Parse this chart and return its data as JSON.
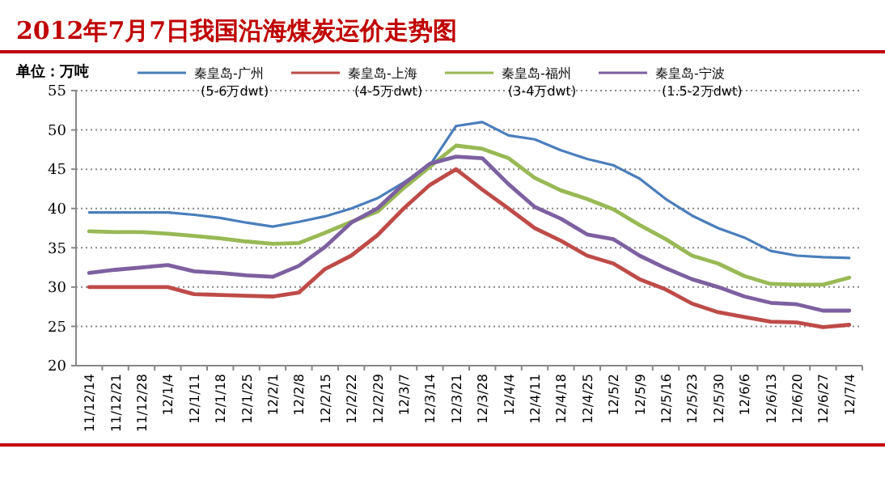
{
  "chart_data": {
    "type": "line",
    "title": "2012年7月7日我国沿海煤炭运价走势图",
    "ylabel": "单位：万吨",
    "legend": "top",
    "grid": "y",
    "marker": "none",
    "line_style": "solid",
    "categories": [
      "11/12/14",
      "11/12/21",
      "11/12/28",
      "12/1/4",
      "12/1/11",
      "12/1/18",
      "12/1/25",
      "12/2/1",
      "12/2/8",
      "12/2/15",
      "12/2/22",
      "12/2/29",
      "12/3/7",
      "12/3/14",
      "12/3/21",
      "12/3/28",
      "12/4/4",
      "12/4/11",
      "12/4/18",
      "12/4/25",
      "12/5/2",
      "12/5/9",
      "12/5/16",
      "12/5/23",
      "12/5/30",
      "12/6/6",
      "12/6/13",
      "12/6/20",
      "12/6/27",
      "12/7/4"
    ],
    "ylim": [
      20,
      55
    ],
    "yticks": [
      20,
      25,
      30,
      35,
      40,
      45,
      50,
      55
    ],
    "series": [
      {
        "name": "秦皇岛-广州\n(5-6万dwt)",
        "color": "#4a7ebb",
        "values": [
          39.5,
          39.5,
          39.5,
          39.5,
          39.2,
          38.8,
          38.2,
          37.7,
          38.3,
          39.0,
          40.0,
          41.3,
          43.3,
          45.5,
          50.5,
          51,
          49.3,
          48.8,
          47.4,
          46.3,
          45.5,
          43.8,
          41.2,
          39.1,
          37.5,
          36.3,
          34.6,
          34,
          33.8,
          33.7
        ]
      },
      {
        "name": "秦皇岛-上海\n(4-5万dwt)",
        "color": "#be4b48",
        "values": [
          30,
          30,
          30,
          30,
          29.1,
          29,
          28.9,
          28.8,
          29.3,
          32.3,
          34,
          36.6,
          40,
          43,
          45,
          42.4,
          40,
          37.5,
          35.9,
          34,
          33,
          31,
          29.7,
          27.9,
          26.8,
          26.2,
          25.6,
          25.5,
          24.9,
          25.2
        ]
      },
      {
        "name": "秦皇岛-福州\n(3-4万dwt)",
        "color": "#98b954",
        "values": [
          37.1,
          37,
          37,
          36.8,
          36.5,
          36.2,
          35.8,
          35.5,
          35.6,
          36.9,
          38.3,
          39.6,
          42.6,
          45.3,
          48,
          47.6,
          46.4,
          43.9,
          42.3,
          41.2,
          39.9,
          37.9,
          36.1,
          34,
          33,
          31.4,
          30.4,
          30.3,
          30.3,
          31.2
        ]
      },
      {
        "name": "秦皇岛-宁波\n(1.5-2万dwt)",
        "color": "#7d60a0",
        "values": [
          31.8,
          32.2,
          32.5,
          32.8,
          32,
          31.8,
          31.5,
          31.3,
          32.7,
          35.1,
          38.2,
          40,
          43.1,
          45.7,
          46.6,
          46.4,
          43.1,
          40.2,
          38.7,
          36.7,
          36.1,
          34,
          32.4,
          31,
          30,
          28.8,
          28,
          27.8,
          27,
          27
        ]
      }
    ]
  }
}
